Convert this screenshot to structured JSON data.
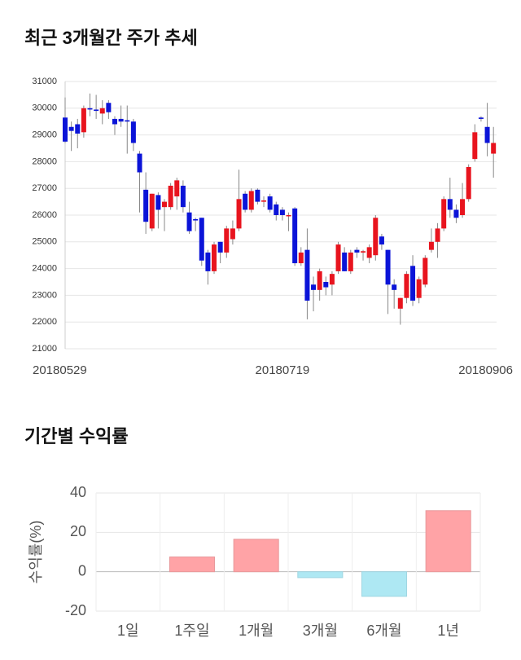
{
  "chart_data": [
    {
      "type": "candlestick",
      "title": "최근 3개월간 주가 추세",
      "categories": [
        "20180529",
        null,
        null,
        null,
        null,
        null,
        null,
        null,
        null,
        null,
        null,
        null,
        null,
        null,
        null,
        null,
        null,
        null,
        null,
        null,
        null,
        null,
        null,
        null,
        null,
        null,
        null,
        null,
        null,
        null,
        null,
        null,
        null,
        null,
        null,
        "20180719",
        null,
        null,
        null,
        null,
        null,
        null,
        null,
        null,
        null,
        null,
        null,
        null,
        null,
        null,
        null,
        null,
        null,
        null,
        null,
        null,
        null,
        null,
        null,
        null,
        null,
        null,
        null,
        null,
        null,
        null,
        null,
        null,
        null,
        "20180906"
      ],
      "open": [
        29650,
        29300,
        29400,
        29100,
        30000,
        29950,
        29800,
        30200,
        29600,
        29600,
        29550,
        29500,
        28300,
        26950,
        25500,
        26750,
        26300,
        26300,
        26700,
        27100,
        26100,
        25850,
        25900,
        24600,
        23900,
        25000,
        24600,
        25100,
        25500,
        26800,
        26200,
        26950,
        26500,
        26700,
        26400,
        26200,
        26000,
        26250,
        24200,
        24700,
        23400,
        23200,
        23500,
        23400,
        23900,
        24600,
        23900,
        24700,
        24600,
        24400,
        24500,
        25200,
        24700,
        23400,
        22500,
        22900,
        24100,
        22900,
        23400,
        24700,
        25000,
        25500,
        26600,
        26200,
        26000,
        26600,
        28100,
        29650,
        29300,
        28300
      ],
      "high": [
        30400,
        29500,
        29600,
        30100,
        30550,
        30500,
        30300,
        30300,
        29700,
        30100,
        30100,
        29600,
        28400,
        27600,
        26800,
        26850,
        26600,
        27200,
        27400,
        27300,
        26500,
        25900,
        25900,
        24700,
        25000,
        25000,
        25600,
        25800,
        27700,
        26900,
        27000,
        27000,
        26700,
        26800,
        26500,
        26300,
        26100,
        26300,
        24800,
        25500,
        23700,
        24000,
        23700,
        23900,
        25000,
        24800,
        24700,
        24800,
        24700,
        24900,
        26000,
        25300,
        24700,
        23600,
        22900,
        23900,
        24500,
        23700,
        24500,
        25500,
        25700,
        26700,
        27400,
        26400,
        27200,
        27900,
        29400,
        29700,
        30200,
        29300
      ],
      "low": [
        28700,
        28400,
        28500,
        28900,
        29700,
        29600,
        29400,
        29600,
        29000,
        29300,
        28300,
        28400,
        26100,
        25300,
        25400,
        25500,
        25400,
        26200,
        26200,
        26100,
        25300,
        25400,
        24100,
        23400,
        23800,
        24200,
        24400,
        24900,
        25400,
        26100,
        26100,
        26400,
        26300,
        26100,
        25800,
        25800,
        25400,
        24100,
        24100,
        22100,
        22400,
        22800,
        23000,
        23000,
        23800,
        23900,
        23800,
        24400,
        24300,
        24200,
        24300,
        24700,
        22300,
        22500,
        21900,
        22700,
        22600,
        22700,
        23300,
        24600,
        24400,
        25400,
        25900,
        25700,
        25900,
        26500,
        28000,
        29500,
        28200,
        27400
      ],
      "close": [
        28750,
        29150,
        29050,
        30000,
        29950,
        29900,
        30000,
        29850,
        29400,
        29500,
        29500,
        28700,
        27600,
        25750,
        26800,
        26200,
        26500,
        27100,
        27300,
        26300,
        25400,
        25800,
        24300,
        23900,
        24900,
        24600,
        25500,
        25500,
        26600,
        26200,
        26900,
        26500,
        26550,
        26200,
        26000,
        26000,
        26000,
        24200,
        24600,
        22800,
        23200,
        23900,
        23300,
        23800,
        24900,
        23900,
        24600,
        24600,
        24650,
        24800,
        25900,
        24900,
        23400,
        23200,
        22900,
        23800,
        22800,
        23600,
        24400,
        25000,
        25500,
        26600,
        26200,
        25900,
        26600,
        27800,
        29100,
        29600,
        28700,
        28700
      ],
      "up_color": "#e8141e",
      "down_color": "#0b14d8",
      "ylim": [
        21000,
        31000
      ],
      "yticks": [
        21000,
        22000,
        23000,
        24000,
        25000,
        26000,
        27000,
        28000,
        29000,
        30000,
        31000
      ],
      "grid": true
    },
    {
      "type": "bar",
      "title": "기간별 수익률",
      "y_label": "수익률(%)",
      "categories": [
        "1일",
        "1주일",
        "1개월",
        "3개월",
        "6개월",
        "1년"
      ],
      "values": [
        0,
        7.5,
        16.5,
        -3,
        -12.5,
        31
      ],
      "positive_color": "#ffa3a6",
      "negative_color": "#aee8f3",
      "ylim": [
        -20,
        40
      ],
      "yticks": [
        -20,
        0,
        20,
        40
      ],
      "grid": true
    }
  ]
}
